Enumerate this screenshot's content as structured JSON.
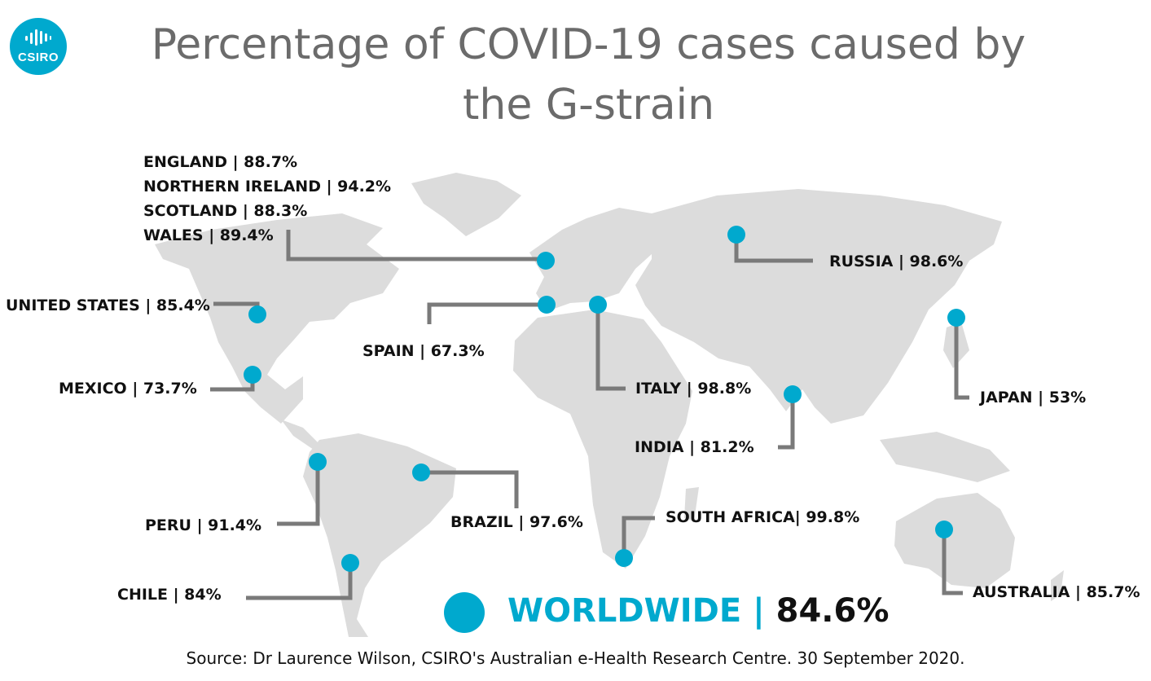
{
  "header": {
    "logo_text": "CSIRO",
    "title_line1": "Percentage of COVID-19 cases caused by",
    "title_line2": "the G-strain"
  },
  "colors": {
    "accent": "#00A9CE",
    "land": "#dcdcdc",
    "leader": "#7a7a7a",
    "title": "#6b6b6b",
    "label": "#111111"
  },
  "countries": {
    "england": "ENGLAND | 88.7%",
    "northern_ireland": "NORTHERN IRELAND | 94.2%",
    "scotland": "SCOTLAND | 88.3%",
    "wales": "WALES | 89.4%",
    "russia": "RUSSIA | 98.6%",
    "united_states": "UNITED STATES | 85.4%",
    "spain": "SPAIN | 67.3%",
    "italy": "ITALY | 98.8%",
    "japan": "JAPAN | 53%",
    "mexico": "MEXICO | 73.7%",
    "india": "INDIA | 81.2%",
    "peru": "PERU | 91.4%",
    "brazil": "BRAZIL | 97.6%",
    "south_africa": "SOUTH AFRICA| 99.8%",
    "chile": "CHILE | 84%",
    "australia": "AUSTRALIA | 85.7%"
  },
  "worldwide": {
    "name": "WORLDWIDE",
    "separator": "|",
    "value": "84.6%"
  },
  "source": "Source: Dr Laurence Wilson, CSIRO's Australian e-Health Research Centre. 30 September 2020."
}
